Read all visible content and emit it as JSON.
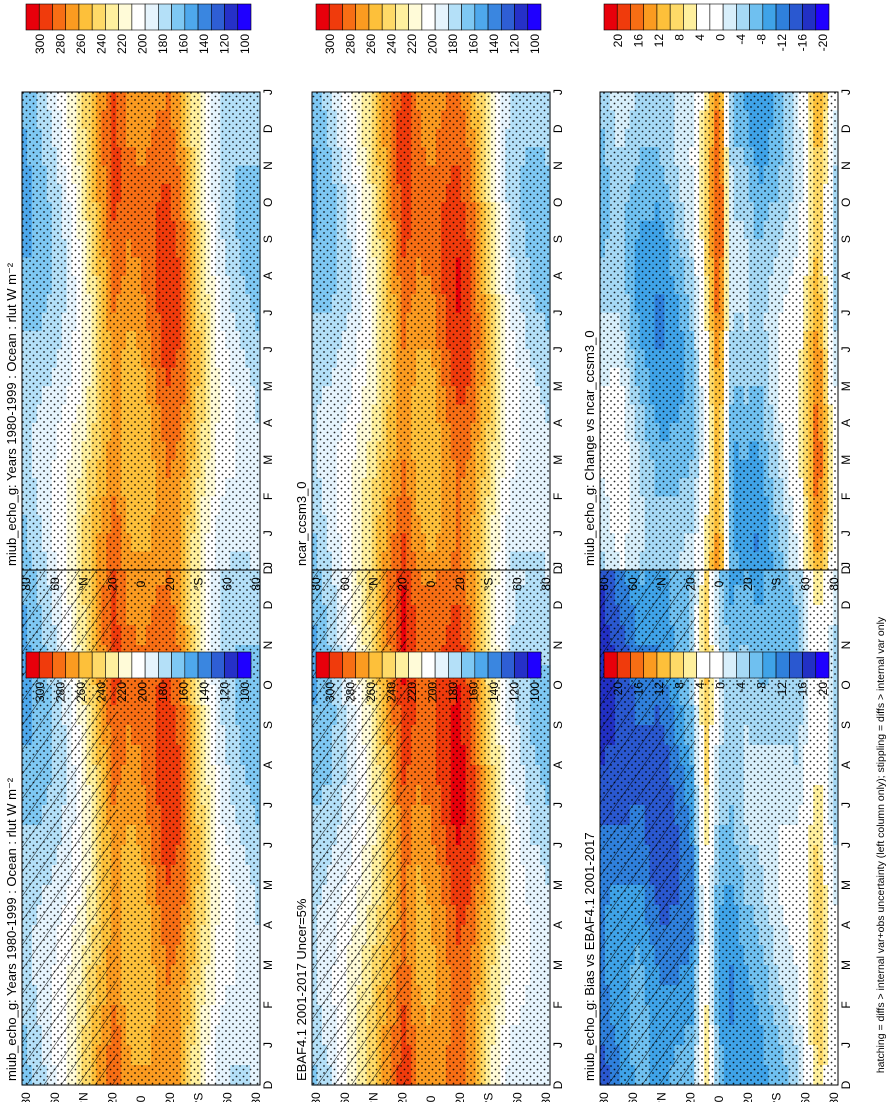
{
  "figure": {
    "footnote": "hatching = diffs > internal var+obs uncertainty (left column only); stippling = diffs > internal var only"
  },
  "chart_data": [
    {
      "type": "heatmap",
      "title": "miub_echo_g: Years 1980-1999 : Ocean : rlut W m⁻²",
      "x_ticks": [
        "D",
        "J",
        "F",
        "M",
        "A",
        "M",
        "J",
        "J",
        "A",
        "S",
        "O",
        "N",
        "D",
        "J"
      ],
      "y_ticks": [
        "80",
        "60",
        "°N",
        "20",
        "0",
        "20",
        "°S",
        "60",
        "80"
      ],
      "kind": "abs",
      "colorbar": {
        "labels": [
          "300",
          "280",
          "260",
          "240",
          "220",
          "200",
          "180",
          "160",
          "140",
          "120",
          "100"
        ],
        "colors": [
          "#e8000b",
          "#f03b0c",
          "#f76e14",
          "#fb9b20",
          "#fdc03a",
          "#feda68",
          "#fff09e",
          "#fffbd8",
          "#ffffff",
          "#e6f4fd",
          "#b4e0f8",
          "#7ec8f3",
          "#4ea8ec",
          "#3a86e0",
          "#2e5ed4",
          "#2530c8",
          "#1f00ff"
        ]
      },
      "hatching": true,
      "zonal_profile": [
        {
          "lat": 90,
          "v": 165
        },
        {
          "lat": 75,
          "v": 175
        },
        {
          "lat": 60,
          "v": 190
        },
        {
          "lat": 45,
          "v": 215
        },
        {
          "lat": 30,
          "v": 250
        },
        {
          "lat": 20,
          "v": 270
        },
        {
          "lat": 10,
          "v": 255
        },
        {
          "lat": 0,
          "v": 255
        },
        {
          "lat": -10,
          "v": 265
        },
        {
          "lat": -20,
          "v": 275
        },
        {
          "lat": -30,
          "v": 265
        },
        {
          "lat": -45,
          "v": 225
        },
        {
          "lat": -60,
          "v": 190
        },
        {
          "lat": -75,
          "v": 180
        },
        {
          "lat": -90,
          "v": 175
        }
      ]
    },
    {
      "type": "heatmap",
      "title": "EBAF4.1 2001-2017 Uncer=5%",
      "x_ticks": [
        "D",
        "J",
        "F",
        "M",
        "A",
        "M",
        "J",
        "J",
        "A",
        "S",
        "O",
        "N",
        "D",
        "J"
      ],
      "y_ticks": [
        "80",
        "60",
        "°N",
        "20",
        "0",
        "20",
        "°S",
        "60",
        "80"
      ],
      "kind": "abs",
      "colorbar": {
        "labels": [
          "300",
          "280",
          "260",
          "240",
          "220",
          "200",
          "180",
          "160",
          "140",
          "120",
          "100"
        ],
        "colors": [
          "#e8000b",
          "#f03b0c",
          "#f76e14",
          "#fb9b20",
          "#fdc03a",
          "#feda68",
          "#fff09e",
          "#fffbd8",
          "#ffffff",
          "#e6f4fd",
          "#b4e0f8",
          "#7ec8f3",
          "#4ea8ec",
          "#3a86e0",
          "#2e5ed4",
          "#2530c8",
          "#1f00ff"
        ]
      },
      "hatching": true,
      "zonal_profile": [
        {
          "lat": 90,
          "v": 168
        },
        {
          "lat": 75,
          "v": 180
        },
        {
          "lat": 60,
          "v": 200
        },
        {
          "lat": 45,
          "v": 225
        },
        {
          "lat": 30,
          "v": 258
        },
        {
          "lat": 20,
          "v": 280
        },
        {
          "lat": 10,
          "v": 262
        },
        {
          "lat": 0,
          "v": 262
        },
        {
          "lat": -10,
          "v": 272
        },
        {
          "lat": -20,
          "v": 282
        },
        {
          "lat": -30,
          "v": 272
        },
        {
          "lat": -45,
          "v": 230
        },
        {
          "lat": -60,
          "v": 195
        },
        {
          "lat": -75,
          "v": 182
        },
        {
          "lat": -90,
          "v": 178
        }
      ]
    },
    {
      "type": "heatmap",
      "title": "miub_echo_g: Bias vs EBAF4.1 2001-2017",
      "x_ticks": [
        "D",
        "J",
        "F",
        "M",
        "A",
        "M",
        "J",
        "J",
        "A",
        "S",
        "O",
        "N",
        "D",
        "J"
      ],
      "y_ticks": [
        "80",
        "60",
        "°N",
        "20",
        "0",
        "20",
        "°S",
        "60",
        "80"
      ],
      "kind": "diff",
      "colorbar": {
        "labels": [
          "20",
          "16",
          "12",
          "8",
          "4",
          "0",
          "-4",
          "-8",
          "-12",
          "-16",
          "-20"
        ],
        "colors": [
          "#e8000b",
          "#f03b0c",
          "#f76e14",
          "#fb9b20",
          "#fdc03a",
          "#feda68",
          "#fff09e",
          "#ffffff",
          "#ffffff",
          "#d8effb",
          "#a6d9f5",
          "#6fc0f0",
          "#3fa3e8",
          "#2f80dc",
          "#2a58d0",
          "#2230c4",
          "#1f00ff"
        ]
      },
      "hatching": true,
      "zonal_profile": [
        {
          "lat": 90,
          "v": -14
        },
        {
          "lat": 75,
          "v": -12
        },
        {
          "lat": 60,
          "v": -10
        },
        {
          "lat": 45,
          "v": -12
        },
        {
          "lat": 30,
          "v": -10
        },
        {
          "lat": 20,
          "v": -8
        },
        {
          "lat": 10,
          "v": 6
        },
        {
          "lat": 0,
          "v": -6
        },
        {
          "lat": -10,
          "v": -8
        },
        {
          "lat": -20,
          "v": -6
        },
        {
          "lat": -30,
          "v": -6
        },
        {
          "lat": -45,
          "v": -4
        },
        {
          "lat": -60,
          "v": -3
        },
        {
          "lat": -75,
          "v": 6
        },
        {
          "lat": -90,
          "v": -4
        }
      ]
    },
    {
      "type": "heatmap",
      "title": "miub_echo_g: Years 1980-1999 : Ocean : rlut W m⁻²",
      "x_ticks": [
        "D",
        "J",
        "F",
        "M",
        "A",
        "M",
        "J",
        "J",
        "A",
        "S",
        "O",
        "N",
        "D",
        "J"
      ],
      "y_ticks": [
        "80",
        "60",
        "°N",
        "20",
        "0",
        "20",
        "°S",
        "60",
        "80"
      ],
      "kind": "abs",
      "colorbar": {
        "labels": [
          "300",
          "280",
          "260",
          "240",
          "220",
          "200",
          "180",
          "160",
          "140",
          "120",
          "100"
        ],
        "colors": [
          "#e8000b",
          "#f03b0c",
          "#f76e14",
          "#fb9b20",
          "#fdc03a",
          "#feda68",
          "#fff09e",
          "#fffbd8",
          "#ffffff",
          "#e6f4fd",
          "#b4e0f8",
          "#7ec8f3",
          "#4ea8ec",
          "#3a86e0",
          "#2e5ed4",
          "#2530c8",
          "#1f00ff"
        ]
      },
      "hatching": false,
      "zonal_profile": [
        {
          "lat": 90,
          "v": 165
        },
        {
          "lat": 75,
          "v": 175
        },
        {
          "lat": 60,
          "v": 190
        },
        {
          "lat": 45,
          "v": 215
        },
        {
          "lat": 30,
          "v": 250
        },
        {
          "lat": 20,
          "v": 270
        },
        {
          "lat": 10,
          "v": 255
        },
        {
          "lat": 0,
          "v": 255
        },
        {
          "lat": -10,
          "v": 265
        },
        {
          "lat": -20,
          "v": 275
        },
        {
          "lat": -30,
          "v": 265
        },
        {
          "lat": -45,
          "v": 225
        },
        {
          "lat": -60,
          "v": 190
        },
        {
          "lat": -75,
          "v": 180
        },
        {
          "lat": -90,
          "v": 175
        }
      ]
    },
    {
      "type": "heatmap",
      "title": "ncar_ccsm3_0",
      "x_ticks": [
        "D",
        "J",
        "F",
        "M",
        "A",
        "M",
        "J",
        "J",
        "A",
        "S",
        "O",
        "N",
        "D",
        "J"
      ],
      "y_ticks": [
        "80",
        "60",
        "°N",
        "20",
        "0",
        "20",
        "°S",
        "60",
        "80"
      ],
      "kind": "abs",
      "colorbar": {
        "labels": [
          "300",
          "280",
          "260",
          "240",
          "220",
          "200",
          "180",
          "160",
          "140",
          "120",
          "100"
        ],
        "colors": [
          "#e8000b",
          "#f03b0c",
          "#f76e14",
          "#fb9b20",
          "#fdc03a",
          "#feda68",
          "#fff09e",
          "#fffbd8",
          "#ffffff",
          "#e6f4fd",
          "#b4e0f8",
          "#7ec8f3",
          "#4ea8ec",
          "#3a86e0",
          "#2e5ed4",
          "#2530c8",
          "#1f00ff"
        ]
      },
      "hatching": false,
      "zonal_profile": [
        {
          "lat": 90,
          "v": 168
        },
        {
          "lat": 75,
          "v": 178
        },
        {
          "lat": 60,
          "v": 195
        },
        {
          "lat": 45,
          "v": 220
        },
        {
          "lat": 30,
          "v": 255
        },
        {
          "lat": 20,
          "v": 275
        },
        {
          "lat": 10,
          "v": 258
        },
        {
          "lat": 0,
          "v": 255
        },
        {
          "lat": -10,
          "v": 268
        },
        {
          "lat": -20,
          "v": 278
        },
        {
          "lat": -30,
          "v": 268
        },
        {
          "lat": -45,
          "v": 228
        },
        {
          "lat": -60,
          "v": 188
        },
        {
          "lat": -75,
          "v": 178
        },
        {
          "lat": -90,
          "v": 175
        }
      ]
    },
    {
      "type": "heatmap",
      "title": "miub_echo_g: Change vs ncar_ccsm3_0",
      "x_ticks": [
        "D",
        "J",
        "F",
        "M",
        "A",
        "M",
        "J",
        "J",
        "A",
        "S",
        "O",
        "N",
        "D",
        "J"
      ],
      "y_ticks": [
        "80",
        "60",
        "°N",
        "20",
        "0",
        "20",
        "°S",
        "60",
        "80"
      ],
      "kind": "diff",
      "colorbar": {
        "labels": [
          "20",
          "16",
          "12",
          "8",
          "4",
          "0",
          "-4",
          "-8",
          "-12",
          "-16",
          "-20"
        ],
        "colors": [
          "#e8000b",
          "#f03b0c",
          "#f76e14",
          "#fb9b20",
          "#fdc03a",
          "#feda68",
          "#fff09e",
          "#ffffff",
          "#ffffff",
          "#d8effb",
          "#a6d9f5",
          "#6fc0f0",
          "#3fa3e8",
          "#2f80dc",
          "#2a58d0",
          "#2230c4",
          "#1f00ff"
        ]
      },
      "hatching": false,
      "zonal_profile": [
        {
          "lat": 90,
          "v": -4
        },
        {
          "lat": 75,
          "v": -2
        },
        {
          "lat": 60,
          "v": -6
        },
        {
          "lat": 45,
          "v": -8
        },
        {
          "lat": 30,
          "v": -6
        },
        {
          "lat": 20,
          "v": -4
        },
        {
          "lat": 10,
          "v": 4
        },
        {
          "lat": 0,
          "v": 14
        },
        {
          "lat": -10,
          "v": -6
        },
        {
          "lat": -20,
          "v": -6
        },
        {
          "lat": -30,
          "v": -8
        },
        {
          "lat": -45,
          "v": -4
        },
        {
          "lat": -60,
          "v": 0
        },
        {
          "lat": -75,
          "v": 12
        },
        {
          "lat": -90,
          "v": -4
        }
      ]
    }
  ]
}
